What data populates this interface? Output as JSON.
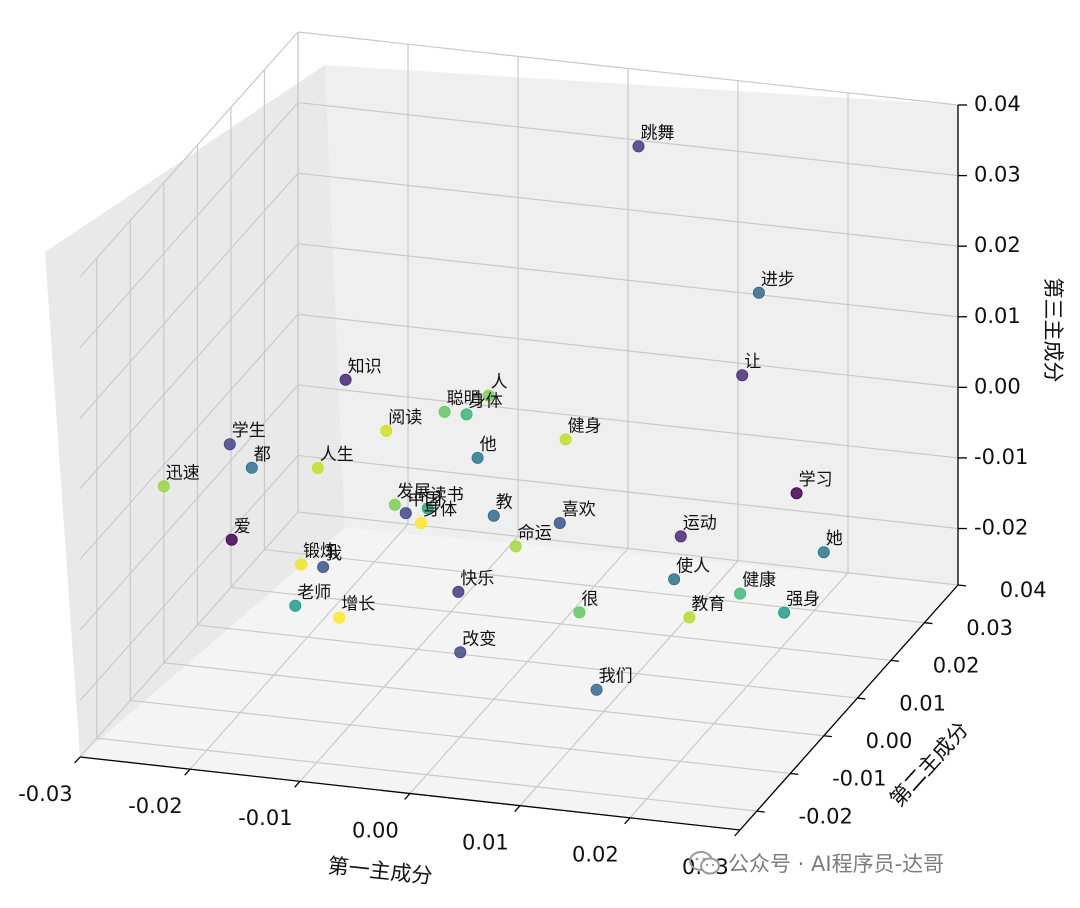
{
  "chart_data": {
    "type": "scatter",
    "projection": "3d",
    "xlabel": "第一主成分",
    "ylabel": "第二主成分",
    "zlabel": "第三主成分",
    "xlim": [
      -0.03,
      0.03
    ],
    "ylim": [
      -0.025,
      0.04
    ],
    "zlim": [
      -0.028,
      0.04
    ],
    "xticks": [
      "-0.03",
      "-0.02",
      "-0.01",
      "0.00",
      "0.01",
      "0.02",
      "0.03"
    ],
    "yticks": [
      "-0.02",
      "-0.01",
      "0.00",
      "0.01",
      "0.02",
      "0.03",
      "0.04"
    ],
    "zticks": [
      "-0.02",
      "-0.01",
      "0.00",
      "0.01",
      "0.02",
      "0.03",
      "0.04"
    ],
    "grid": true,
    "colormap": [
      "#440154",
      "#3b528b",
      "#21918c",
      "#5ec962",
      "#fde725"
    ],
    "points": [
      {
        "label": "跳舞",
        "x": 0.004,
        "y": 0.03,
        "z": 0.035,
        "color": "#443a83"
      },
      {
        "label": "进步",
        "x": 0.018,
        "y": 0.02,
        "z": 0.022,
        "color": "#31688e"
      },
      {
        "label": "让",
        "x": 0.018,
        "y": 0.015,
        "z": 0.013,
        "color": "#472d7b"
      },
      {
        "label": "知识",
        "x": -0.015,
        "y": 0.005,
        "z": 0.012,
        "color": "#482475"
      },
      {
        "label": "人",
        "x": -0.002,
        "y": 0.005,
        "z": 0.012,
        "color": "#7ad151"
      },
      {
        "label": "聪明",
        "x": -0.006,
        "y": 0.005,
        "z": 0.009,
        "color": "#5ec962"
      },
      {
        "label": "身体",
        "x": -0.004,
        "y": 0.005,
        "z": 0.009,
        "color": "#35b779"
      },
      {
        "label": "健身",
        "x": 0.005,
        "y": 0.005,
        "z": 0.007,
        "color": "#bddf26"
      },
      {
        "label": "阅读",
        "x": -0.011,
        "y": 0.004,
        "z": 0.006,
        "color": "#d0e11c"
      },
      {
        "label": "学生",
        "x": -0.024,
        "y": 0.0,
        "z": 0.004,
        "color": "#414487"
      },
      {
        "label": "学习",
        "x": 0.026,
        "y": 0.005,
        "z": 0.003,
        "color": "#440154"
      },
      {
        "label": "他",
        "x": -0.003,
        "y": 0.005,
        "z": 0.003,
        "color": "#2a788e"
      },
      {
        "label": "都",
        "x": -0.022,
        "y": 0.0,
        "z": 0.001,
        "color": "#2c728e"
      },
      {
        "label": "人生",
        "x": -0.016,
        "y": 0.0,
        "z": 0.002,
        "color": "#c2df23"
      },
      {
        "label": "教",
        "x": 0.0,
        "y": 0.0,
        "z": -0.002,
        "color": "#31688e"
      },
      {
        "label": "发展",
        "x": -0.009,
        "y": 0.0,
        "z": -0.002,
        "color": "#7ad151"
      },
      {
        "label": "读书",
        "x": -0.006,
        "y": 0.0,
        "z": -0.002,
        "color": "#22a884"
      },
      {
        "label": "喜欢",
        "x": 0.006,
        "y": 0.0,
        "z": -0.002,
        "color": "#3b528b"
      },
      {
        "label": "中国",
        "x": -0.008,
        "y": 0.0,
        "z": -0.003,
        "color": "#3e4989"
      },
      {
        "label": "运动",
        "x": 0.017,
        "y": 0.0,
        "z": -0.002,
        "color": "#482878"
      },
      {
        "label": "她",
        "x": 0.03,
        "y": 0.0,
        "z": -0.002,
        "color": "#2a788e"
      },
      {
        "label": "身体",
        "x": -0.006,
        "y": -0.002,
        "z": -0.003,
        "color": "#fde725"
      },
      {
        "label": "迅速",
        "x": -0.03,
        "y": 0.0,
        "z": -0.003,
        "color": "#95d840"
      },
      {
        "label": "命运",
        "x": 0.002,
        "y": 0.0,
        "z": -0.006,
        "color": "#a0da39"
      },
      {
        "label": "爱",
        "x": -0.022,
        "y": -0.006,
        "z": -0.006,
        "color": "#440154"
      },
      {
        "label": "使人",
        "x": 0.017,
        "y": -0.002,
        "z": -0.007,
        "color": "#2c728e"
      },
      {
        "label": "健康",
        "x": 0.023,
        "y": -0.002,
        "z": -0.008,
        "color": "#3cbb75"
      },
      {
        "label": "强身",
        "x": 0.027,
        "y": -0.002,
        "z": -0.01,
        "color": "#1f9e89"
      },
      {
        "label": "锻炼",
        "x": -0.016,
        "y": -0.005,
        "z": -0.009,
        "color": "#f1e51d"
      },
      {
        "label": "我",
        "x": -0.014,
        "y": -0.005,
        "z": -0.009,
        "color": "#3b528b"
      },
      {
        "label": "快乐",
        "x": -0.002,
        "y": -0.004,
        "z": -0.011,
        "color": "#443983"
      },
      {
        "label": "很",
        "x": 0.009,
        "y": -0.004,
        "z": -0.012,
        "color": "#5ec962"
      },
      {
        "label": "教育",
        "x": 0.019,
        "y": -0.004,
        "z": -0.011,
        "color": "#b5de2b"
      },
      {
        "label": "老师",
        "x": -0.015,
        "y": -0.01,
        "z": -0.012,
        "color": "#1f9e89"
      },
      {
        "label": "增长",
        "x": -0.011,
        "y": -0.01,
        "z": -0.013,
        "color": "#fde725"
      },
      {
        "label": "改变",
        "x": 0.0,
        "y": -0.01,
        "z": -0.016,
        "color": "#3e4989"
      },
      {
        "label": "我们",
        "x": 0.013,
        "y": -0.012,
        "z": -0.018,
        "color": "#31688e"
      }
    ]
  },
  "watermark": {
    "text": "公众号 · AI程序员-达哥",
    "icon": "wechat-icon"
  }
}
